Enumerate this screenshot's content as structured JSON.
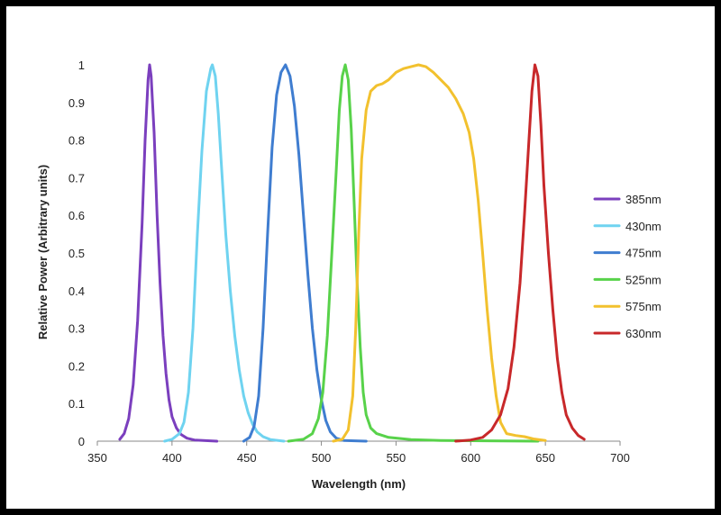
{
  "chart_data": {
    "type": "line",
    "title": "",
    "xlabel": "Wavelength (nm)",
    "ylabel": "Relative Power (Arbitrary units)",
    "xlim": [
      350,
      700
    ],
    "ylim": [
      0,
      1
    ],
    "xticks": [
      350,
      400,
      450,
      500,
      550,
      600,
      650,
      700
    ],
    "yticks": [
      0,
      0.1,
      0.2,
      0.3,
      0.4,
      0.5,
      0.6,
      0.7,
      0.8,
      0.9,
      1
    ],
    "xtick_labels": [
      "350",
      "400",
      "450",
      "500",
      "550",
      "600",
      "650",
      "700"
    ],
    "ytick_labels": [
      "0",
      "0.1",
      "0.2",
      "0.3",
      "0.4",
      "0.5",
      "0.6",
      "0.7",
      "0.8",
      "0.9",
      "1"
    ],
    "grid": false,
    "legend_position": "right",
    "series": [
      {
        "name": "385nm",
        "color": "#7B3FBE",
        "points": [
          [
            365,
            0.005
          ],
          [
            368,
            0.02
          ],
          [
            371,
            0.06
          ],
          [
            374,
            0.15
          ],
          [
            377,
            0.32
          ],
          [
            380,
            0.58
          ],
          [
            382,
            0.8
          ],
          [
            384,
            0.96
          ],
          [
            385,
            1.0
          ],
          [
            386,
            0.97
          ],
          [
            388,
            0.82
          ],
          [
            390,
            0.6
          ],
          [
            392,
            0.42
          ],
          [
            394,
            0.28
          ],
          [
            396,
            0.18
          ],
          [
            398,
            0.11
          ],
          [
            400,
            0.065
          ],
          [
            403,
            0.035
          ],
          [
            406,
            0.018
          ],
          [
            410,
            0.008
          ],
          [
            415,
            0.003
          ],
          [
            430,
            0.0
          ]
        ]
      },
      {
        "name": "430nm",
        "color": "#6FD3F0",
        "points": [
          [
            395,
            0.0
          ],
          [
            400,
            0.005
          ],
          [
            405,
            0.02
          ],
          [
            408,
            0.05
          ],
          [
            411,
            0.13
          ],
          [
            414,
            0.3
          ],
          [
            417,
            0.55
          ],
          [
            420,
            0.77
          ],
          [
            423,
            0.93
          ],
          [
            426,
            0.99
          ],
          [
            427,
            1.0
          ],
          [
            429,
            0.97
          ],
          [
            431,
            0.87
          ],
          [
            433,
            0.74
          ],
          [
            436,
            0.55
          ],
          [
            439,
            0.4
          ],
          [
            442,
            0.28
          ],
          [
            445,
            0.19
          ],
          [
            448,
            0.12
          ],
          [
            451,
            0.075
          ],
          [
            454,
            0.045
          ],
          [
            457,
            0.025
          ],
          [
            461,
            0.012
          ],
          [
            466,
            0.004
          ],
          [
            475,
            0.0
          ]
        ]
      },
      {
        "name": "475nm",
        "color": "#3F7DD0",
        "points": [
          [
            448,
            0.0
          ],
          [
            452,
            0.01
          ],
          [
            455,
            0.04
          ],
          [
            458,
            0.12
          ],
          [
            461,
            0.3
          ],
          [
            464,
            0.55
          ],
          [
            467,
            0.78
          ],
          [
            470,
            0.92
          ],
          [
            473,
            0.98
          ],
          [
            476,
            1.0
          ],
          [
            479,
            0.97
          ],
          [
            482,
            0.89
          ],
          [
            485,
            0.76
          ],
          [
            488,
            0.6
          ],
          [
            491,
            0.44
          ],
          [
            494,
            0.3
          ],
          [
            497,
            0.19
          ],
          [
            500,
            0.11
          ],
          [
            503,
            0.055
          ],
          [
            506,
            0.025
          ],
          [
            510,
            0.008
          ],
          [
            515,
            0.002
          ],
          [
            530,
            0.0
          ]
        ]
      },
      {
        "name": "525nm",
        "color": "#58D24A",
        "points": [
          [
            478,
            0.0
          ],
          [
            488,
            0.005
          ],
          [
            494,
            0.02
          ],
          [
            498,
            0.06
          ],
          [
            501,
            0.13
          ],
          [
            504,
            0.28
          ],
          [
            507,
            0.5
          ],
          [
            510,
            0.72
          ],
          [
            512,
            0.88
          ],
          [
            514,
            0.97
          ],
          [
            516,
            1.0
          ],
          [
            518,
            0.96
          ],
          [
            520,
            0.83
          ],
          [
            522,
            0.63
          ],
          [
            524,
            0.42
          ],
          [
            526,
            0.25
          ],
          [
            528,
            0.13
          ],
          [
            530,
            0.07
          ],
          [
            533,
            0.035
          ],
          [
            537,
            0.02
          ],
          [
            545,
            0.01
          ],
          [
            560,
            0.004
          ],
          [
            580,
            0.002
          ],
          [
            610,
            0.001
          ],
          [
            645,
            0.0
          ]
        ]
      },
      {
        "name": "575nm",
        "color": "#F2C12E",
        "points": [
          [
            508,
            0.0
          ],
          [
            514,
            0.005
          ],
          [
            518,
            0.03
          ],
          [
            521,
            0.12
          ],
          [
            523,
            0.3
          ],
          [
            525,
            0.55
          ],
          [
            527,
            0.75
          ],
          [
            530,
            0.88
          ],
          [
            533,
            0.93
          ],
          [
            537,
            0.945
          ],
          [
            541,
            0.95
          ],
          [
            545,
            0.96
          ],
          [
            550,
            0.98
          ],
          [
            555,
            0.99
          ],
          [
            560,
            0.995
          ],
          [
            565,
            1.0
          ],
          [
            570,
            0.995
          ],
          [
            575,
            0.98
          ],
          [
            580,
            0.96
          ],
          [
            585,
            0.94
          ],
          [
            590,
            0.91
          ],
          [
            595,
            0.87
          ],
          [
            599,
            0.82
          ],
          [
            602,
            0.75
          ],
          [
            605,
            0.64
          ],
          [
            608,
            0.5
          ],
          [
            611,
            0.35
          ],
          [
            614,
            0.22
          ],
          [
            617,
            0.12
          ],
          [
            620,
            0.05
          ],
          [
            624,
            0.02
          ],
          [
            630,
            0.015
          ],
          [
            636,
            0.012
          ],
          [
            642,
            0.006
          ],
          [
            650,
            0.002
          ]
        ]
      },
      {
        "name": "630nm",
        "color": "#C8282A",
        "points": [
          [
            590,
            0.0
          ],
          [
            600,
            0.003
          ],
          [
            608,
            0.01
          ],
          [
            614,
            0.03
          ],
          [
            620,
            0.07
          ],
          [
            625,
            0.14
          ],
          [
            629,
            0.25
          ],
          [
            633,
            0.42
          ],
          [
            636,
            0.6
          ],
          [
            639,
            0.8
          ],
          [
            641,
            0.93
          ],
          [
            643,
            1.0
          ],
          [
            645,
            0.97
          ],
          [
            647,
            0.84
          ],
          [
            649,
            0.68
          ],
          [
            652,
            0.5
          ],
          [
            655,
            0.35
          ],
          [
            658,
            0.22
          ],
          [
            661,
            0.13
          ],
          [
            664,
            0.07
          ],
          [
            668,
            0.035
          ],
          [
            672,
            0.015
          ],
          [
            676,
            0.005
          ]
        ]
      }
    ]
  }
}
